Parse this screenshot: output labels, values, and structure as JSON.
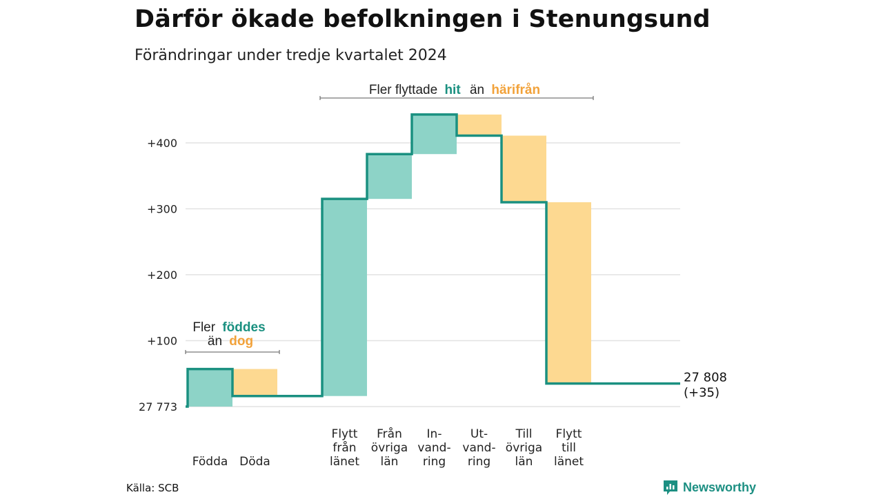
{
  "title": "Därför ökade befolkningen i Stenungsund",
  "subtitle": "Förändringar under tredje kvartalet 2024",
  "source": "Källa: SCB",
  "brand": "Newsworthy",
  "colors": {
    "increase": "#8dd3c7",
    "decrease": "#fdd991",
    "line": "#1a9080",
    "increase_text": "#1a9080",
    "decrease_text": "#f2a23a",
    "grid": "#e2e2e2"
  },
  "annotations": {
    "migration": {
      "prefix": "Fler flyttade",
      "hit": "hit",
      "mid": "än",
      "harifran": "härifrån"
    },
    "natural": {
      "prefix": "Fler",
      "fodda": "föddes",
      "mid": "än",
      "doda": "dog"
    }
  },
  "chart_data": {
    "type": "waterfall",
    "baseline_label": "27 773",
    "end_label": "27 808",
    "end_change_label": "(+35)",
    "y_ticks": [
      {
        "value": 100,
        "label": "+100"
      },
      {
        "value": 200,
        "label": "+200"
      },
      {
        "value": 300,
        "label": "+300"
      },
      {
        "value": 400,
        "label": "+400"
      }
    ],
    "ylim": [
      0,
      440
    ],
    "steps": [
      {
        "label": [
          "Födda"
        ],
        "change": 57,
        "group": "natural"
      },
      {
        "label": [
          "Döda"
        ],
        "change": -41,
        "group": "natural"
      },
      {
        "label": [
          "Flytt",
          "från",
          "länet"
        ],
        "change": 299,
        "group": "migration"
      },
      {
        "label": [
          "Från",
          "övriga",
          "län"
        ],
        "change": 68,
        "group": "migration"
      },
      {
        "label": [
          "In-",
          "vand-",
          "ring"
        ],
        "change": 60,
        "group": "migration"
      },
      {
        "label": [
          "Ut-",
          "vand-",
          "ring"
        ],
        "change": -32,
        "group": "migration"
      },
      {
        "label": [
          "Till",
          "övriga",
          "län"
        ],
        "change": -101,
        "group": "migration"
      },
      {
        "label": [
          "Flytt",
          "till",
          "länet"
        ],
        "change": -275,
        "group": "migration"
      }
    ]
  }
}
